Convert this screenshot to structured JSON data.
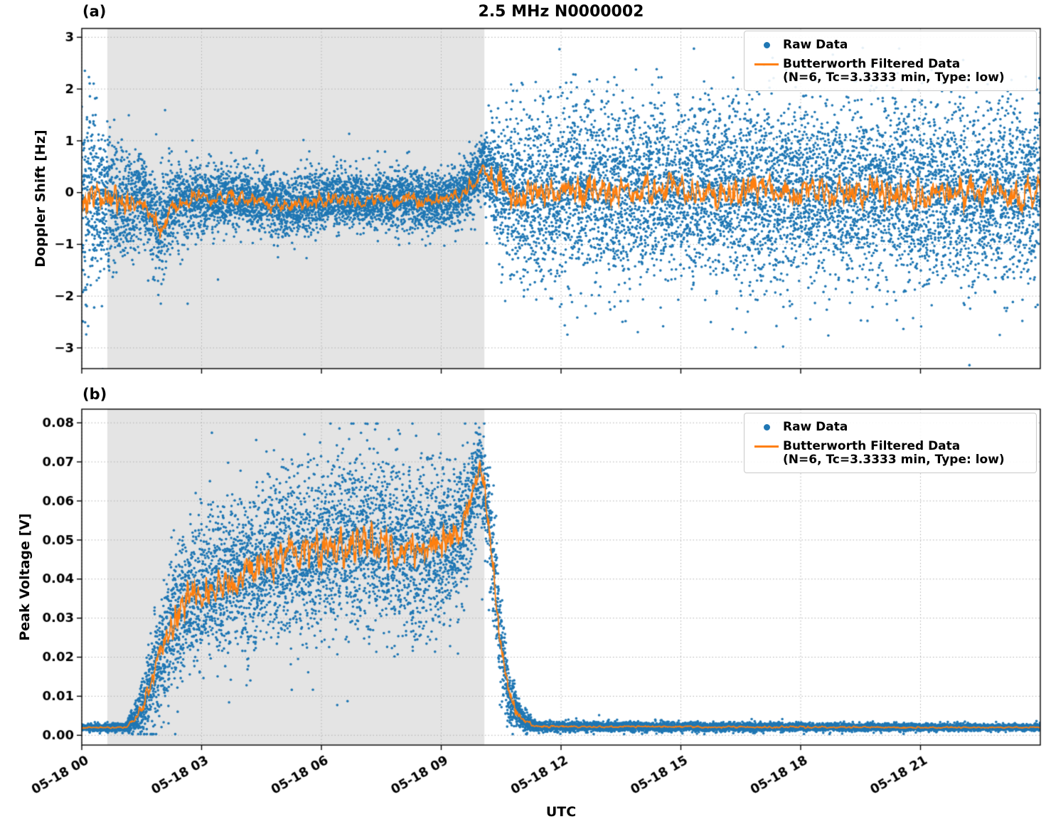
{
  "figure": {
    "title": "2.5 MHz N0000002",
    "xlabel": "UTC",
    "panel_a_tag": "(a)",
    "panel_b_tag": "(b)",
    "legend": {
      "raw_label": "Raw Data",
      "filtered_label": "Butterworth Filtered Data",
      "filtered_params": "(N=6, Tc=3.3333 min, Type: low)"
    },
    "colors": {
      "raw": "#1f77b4",
      "filtered": "#ff7f0e",
      "shade": "#e4e4e4",
      "grid": "#b0b0b0",
      "frame": "#000000"
    }
  },
  "chart_data": [
    {
      "name": "doppler-shift-panel",
      "type": "scatter",
      "title": "2.5 MHz N0000002",
      "ylabel": "Doppler Shift [Hz]",
      "ylim": [
        -3.4,
        3.17
      ],
      "yticks": [
        -3,
        -2,
        -1,
        0,
        1,
        2,
        3
      ],
      "ytick_decimals": 0,
      "x_hours_range": [
        0,
        24
      ],
      "xticks_hours": [
        0,
        3,
        6,
        9,
        12,
        15,
        18,
        21
      ],
      "xtick_labels": [
        "05-18 00",
        "05-18 03",
        "05-18 06",
        "05-18 09",
        "05-18 12",
        "05-18 15",
        "05-18 18",
        "05-18 21"
      ],
      "shaded_region_hours": [
        0.64,
        10.08
      ],
      "grid": true,
      "legend_position": "upper right",
      "seed": 7,
      "series": [
        {
          "name": "Raw Data",
          "kind": "scatter",
          "color": "#1f77b4",
          "points_per_hour": 520,
          "marker_radius": 1.8,
          "envelope_t_center_sigma": [
            [
              0,
              -0.15,
              0.95
            ],
            [
              0.4,
              -0.1,
              0.8
            ],
            [
              0.9,
              -0.2,
              0.6
            ],
            [
              1.5,
              -0.1,
              0.38
            ],
            [
              1.8,
              -0.5,
              0.45
            ],
            [
              2.0,
              -0.75,
              0.5
            ],
            [
              2.2,
              -0.3,
              0.45
            ],
            [
              2.6,
              -0.15,
              0.33
            ],
            [
              3.2,
              -0.1,
              0.3
            ],
            [
              4.0,
              -0.1,
              0.3
            ],
            [
              4.6,
              -0.2,
              0.32
            ],
            [
              5.2,
              -0.3,
              0.3
            ],
            [
              5.8,
              -0.15,
              0.28
            ],
            [
              6.5,
              -0.1,
              0.28
            ],
            [
              7.2,
              -0.2,
              0.28
            ],
            [
              8.0,
              -0.1,
              0.28
            ],
            [
              8.8,
              -0.15,
              0.27
            ],
            [
              9.4,
              -0.1,
              0.28
            ],
            [
              9.8,
              0.2,
              0.3
            ],
            [
              10.05,
              0.55,
              0.3
            ],
            [
              10.3,
              0.3,
              0.5
            ],
            [
              10.6,
              -0.05,
              0.7
            ],
            [
              11.0,
              0.0,
              0.8
            ],
            [
              12.0,
              0.0,
              0.85
            ],
            [
              24,
              0.0,
              0.85
            ]
          ]
        },
        {
          "name": "Butterworth Filtered Data (N=6, Tc=3.3333 min, Type: low)",
          "kind": "line",
          "color": "#ff7f0e",
          "line_width": 1.8,
          "noise_steps": [
            0.06,
            0.018
          ],
          "amp_scale": 0.5,
          "amp_min": 0.07,
          "amp_max": 0.32
        }
      ]
    },
    {
      "name": "peak-voltage-panel",
      "type": "scatter",
      "ylabel": "Peak Voltage [V]",
      "ylim": [
        -0.0025,
        0.0835
      ],
      "yticks": [
        0.0,
        0.01,
        0.02,
        0.03,
        0.04,
        0.05,
        0.06,
        0.07,
        0.08
      ],
      "ytick_decimals": 2,
      "x_hours_range": [
        0,
        24
      ],
      "xticks_hours": [
        0,
        3,
        6,
        9,
        12,
        15,
        18,
        21
      ],
      "xtick_labels": [
        "05-18 00",
        "05-18 03",
        "05-18 06",
        "05-18 09",
        "05-18 12",
        "05-18 15",
        "05-18 18",
        "05-18 21"
      ],
      "shaded_region_hours": [
        0.64,
        10.08
      ],
      "grid": true,
      "legend_position": "upper right",
      "seed": 13,
      "clip_y": [
        0.0003,
        0.0798
      ],
      "series": [
        {
          "name": "Raw Data",
          "kind": "scatter",
          "color": "#1f77b4",
          "points_per_hour": 520,
          "marker_radius": 1.8,
          "envelope_t_center_sigma": [
            [
              0,
              0.002,
              0.0004
            ],
            [
              1.1,
              0.002,
              0.0005
            ],
            [
              1.4,
              0.005,
              0.0025
            ],
            [
              1.8,
              0.014,
              0.006
            ],
            [
              2.1,
              0.024,
              0.008
            ],
            [
              2.5,
              0.033,
              0.009
            ],
            [
              3.0,
              0.037,
              0.009
            ],
            [
              3.8,
              0.04,
              0.01
            ],
            [
              4.6,
              0.044,
              0.01
            ],
            [
              5.4,
              0.046,
              0.011
            ],
            [
              6.2,
              0.048,
              0.011
            ],
            [
              7.0,
              0.05,
              0.011
            ],
            [
              7.8,
              0.048,
              0.011
            ],
            [
              8.6,
              0.047,
              0.011
            ],
            [
              9.3,
              0.049,
              0.01
            ],
            [
              9.7,
              0.056,
              0.008
            ],
            [
              9.95,
              0.07,
              0.006
            ],
            [
              10.15,
              0.058,
              0.008
            ],
            [
              10.45,
              0.028,
              0.007
            ],
            [
              10.7,
              0.01,
              0.004
            ],
            [
              11.0,
              0.004,
              0.0015
            ],
            [
              11.4,
              0.0022,
              0.0006
            ],
            [
              24,
              0.002,
              0.0004
            ]
          ]
        },
        {
          "name": "Butterworth Filtered Data (N=6, Tc=3.3333 min, Type: low)",
          "kind": "line",
          "color": "#ff7f0e",
          "line_width": 1.8,
          "noise_steps": [
            0.06,
            0.018
          ],
          "amp_scale": 0.5,
          "amp_min": 0.0002,
          "amp_max": 0.006
        }
      ]
    }
  ]
}
